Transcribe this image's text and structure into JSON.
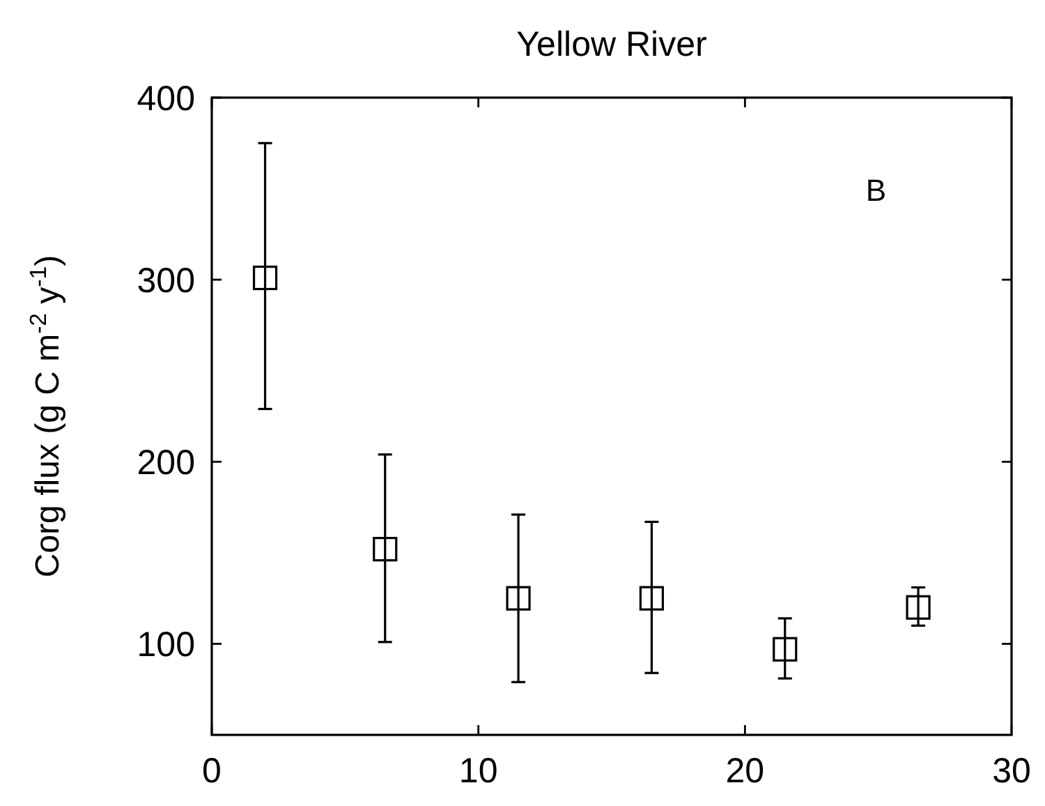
{
  "chart_data": {
    "type": "scatter",
    "title": "Yellow River",
    "ylabel": "Corg flux (g C m$^{-2}$ y$^{-1}$)",
    "x": [
      2,
      6.5,
      11.5,
      16.5,
      21.5,
      26.5
    ],
    "values": [
      301,
      152,
      125,
      125,
      97,
      120
    ],
    "errors": [
      [
        229,
        375
      ],
      [
        101,
        204
      ],
      [
        79,
        171
      ],
      [
        84,
        167
      ],
      [
        81,
        114
      ],
      [
        110,
        131
      ]
    ],
    "color": "#000000",
    "marker": "square",
    "line_style": "none",
    "xlim": [
      0,
      30
    ],
    "xticks": [
      0,
      10,
      20,
      30
    ],
    "ylim": [
      50,
      400
    ],
    "yticks": [
      100,
      200,
      300,
      400
    ],
    "grid": false,
    "annotations": [
      "B"
    ]
  }
}
